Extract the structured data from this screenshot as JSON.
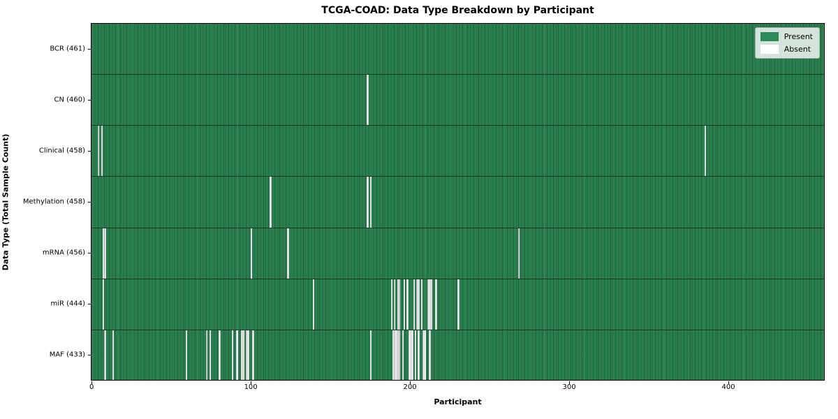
{
  "title": "TCGA-COAD: Data Type Breakdown by Participant",
  "xlabel": "Participant",
  "ylabel": "Data Type (Total Sample Count)",
  "legend": {
    "present_label": "Present",
    "absent_label": "Absent"
  },
  "colors": {
    "present": "#2e8b57",
    "absent": "#ffffff",
    "bar_edge": "rgba(0,0,0,0.38)",
    "background": "#ffffff"
  },
  "chart_data": {
    "type": "heatmap",
    "title": "TCGA-COAD: Data Type Breakdown by Participant",
    "xlabel": "Participant",
    "ylabel": "Data Type (Total Sample Count)",
    "n_participants": 461,
    "x_ticks": [
      0,
      100,
      200,
      300,
      400
    ],
    "xlim": [
      -0.5,
      460.5
    ],
    "legend_position": "upper right",
    "cell_states": [
      "Present",
      "Absent"
    ],
    "rows": [
      {
        "name": "BCR",
        "label": "BCR (461)",
        "present_count": 461,
        "absent_participants": []
      },
      {
        "name": "CN",
        "label": "CN (460)",
        "present_count": 460,
        "absent_participants": [
          173
        ]
      },
      {
        "name": "Clinical",
        "label": "Clinical (458)",
        "present_count": 458,
        "absent_participants": [
          4,
          6,
          385
        ]
      },
      {
        "name": "Methylation",
        "label": "Methylation (458)",
        "present_count": 458,
        "absent_participants": [
          112,
          173,
          175
        ]
      },
      {
        "name": "mRNA",
        "label": "mRNA (456)",
        "present_count": 456,
        "absent_participants": [
          7,
          8,
          100,
          123,
          268
        ]
      },
      {
        "name": "miR",
        "label": "miR (444)",
        "present_count": 444,
        "absent_participants": [
          7,
          139,
          188,
          190,
          192,
          193,
          196,
          198,
          202,
          204,
          205,
          207,
          211,
          212,
          213,
          216,
          230
        ]
      },
      {
        "name": "MAF",
        "label": "MAF (433)",
        "present_count": 433,
        "absent_participants": [
          8,
          13,
          59,
          72,
          74,
          80,
          88,
          91,
          94,
          95,
          97,
          98,
          101,
          175,
          189,
          190,
          191,
          192,
          193,
          195,
          199,
          200,
          201,
          203,
          205,
          208,
          209,
          212
        ]
      }
    ]
  }
}
